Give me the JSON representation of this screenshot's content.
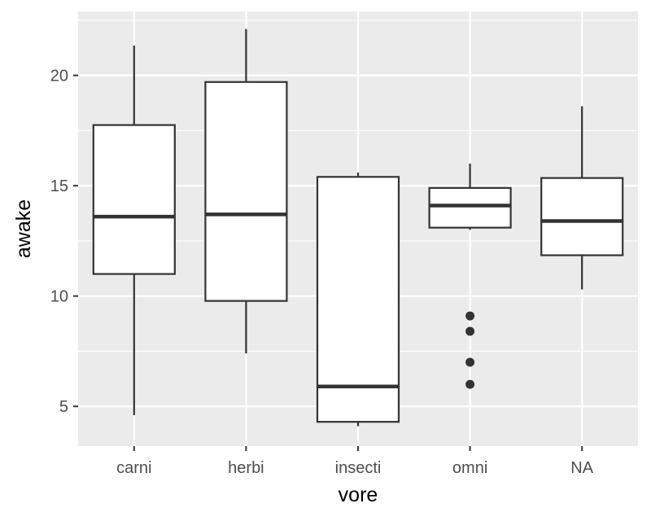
{
  "chart_data": {
    "type": "box",
    "xlabel": "vore",
    "ylabel": "awake",
    "categories": [
      "carni",
      "herbi",
      "insecti",
      "omni",
      "NA"
    ],
    "ylim": [
      3.2,
      22.9
    ],
    "yticks": [
      5,
      10,
      15,
      20
    ],
    "grid": true,
    "legend": "none",
    "boxes": [
      {
        "category": "carni",
        "whisker_low": 4.6,
        "q1": 11.0,
        "median": 13.6,
        "q3": 17.75,
        "whisker_high": 21.35,
        "outliers": []
      },
      {
        "category": "herbi",
        "whisker_low": 7.4,
        "q1": 9.78,
        "median": 13.7,
        "q3": 19.7,
        "whisker_high": 22.1,
        "outliers": []
      },
      {
        "category": "insecti",
        "whisker_low": 4.1,
        "q1": 4.3,
        "median": 5.9,
        "q3": 15.4,
        "whisker_high": 15.6,
        "outliers": []
      },
      {
        "category": "omni",
        "whisker_low": 13.0,
        "q1": 13.1,
        "median": 14.1,
        "q3": 14.9,
        "whisker_high": 16.0,
        "outliers": [
          9.1,
          8.4,
          7.0,
          6.0
        ]
      },
      {
        "category": "NA",
        "whisker_low": 10.3,
        "q1": 11.85,
        "median": 13.4,
        "q3": 15.35,
        "whisker_high": 18.6,
        "outliers": []
      }
    ],
    "colors": {
      "panel": "#ebebeb",
      "grid_major": "#ffffff",
      "box_fill": "#ffffff",
      "box_line": "#333333",
      "tick_text": "#4d4d4d",
      "axis_text": "#000000"
    }
  }
}
